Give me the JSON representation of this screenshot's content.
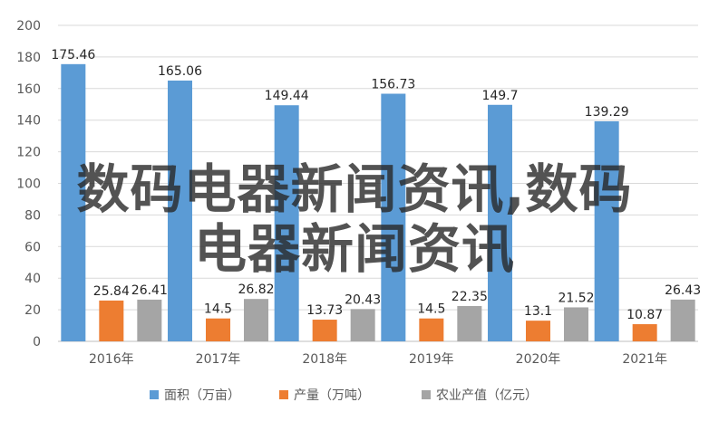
{
  "chart_data": {
    "type": "bar",
    "categories": [
      "2016年",
      "2017年",
      "2018年",
      "2019年",
      "2020年",
      "2021年"
    ],
    "series": [
      {
        "name": "面积（万亩）",
        "color": "#5b9bd5",
        "values": [
          175.46,
          165.06,
          149.44,
          156.73,
          149.7,
          139.29
        ]
      },
      {
        "name": "产量（万吨）",
        "color": "#ed7d31",
        "values": [
          25.84,
          14.5,
          13.73,
          14.5,
          13.1,
          10.87
        ]
      },
      {
        "name": "农业产值（亿元）",
        "color": "#a5a5a5",
        "values": [
          26.41,
          26.82,
          20.43,
          22.35,
          21.52,
          26.43
        ]
      }
    ],
    "data_labels": [
      [
        "175.46",
        "165.06",
        "149.44",
        "156.73",
        "149.7",
        "139.29"
      ],
      [
        "25.84",
        "14.5",
        "13.73",
        "14.5",
        "13.1",
        "10.87"
      ],
      [
        "26.41",
        "26.82",
        "20.43",
        "22.35",
        "21.52",
        "26.43"
      ]
    ],
    "ylim": [
      0,
      200
    ],
    "yticks": [
      "0",
      "20",
      "40",
      "60",
      "80",
      "100",
      "120",
      "140",
      "160",
      "180",
      "200"
    ],
    "grid": true,
    "legend_position": "bottom"
  },
  "watermark": {
    "line1": "数码电器新闻资讯,数码",
    "line2": "电器新闻资讯"
  }
}
